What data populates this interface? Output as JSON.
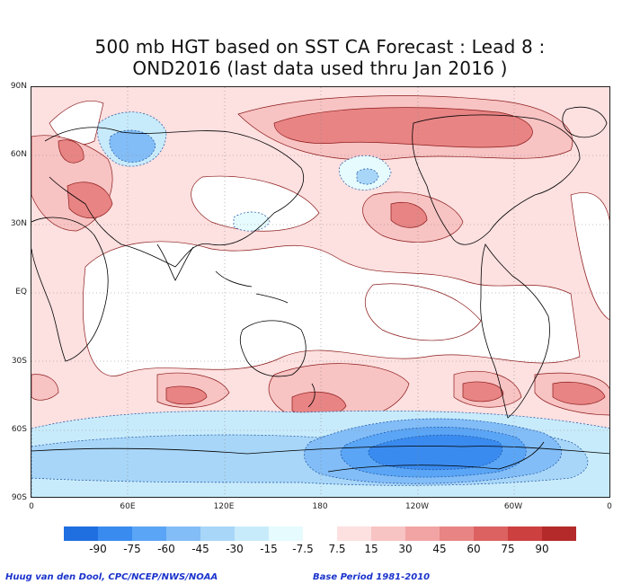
{
  "title": {
    "line1": "500 mb HGT based on SST CA Forecast : Lead 8 :",
    "line2": "OND2016 (last data used thru Jan 2016 )"
  },
  "map": {
    "lat_labels": [
      "90N",
      "60N",
      "30N",
      "EQ",
      "30S",
      "60S",
      "90S"
    ],
    "lon_labels": [
      "0",
      "60E",
      "120E",
      "180",
      "120W",
      "60W",
      "0"
    ]
  },
  "colorbar": {
    "levels": [
      "-90",
      "-75",
      "-60",
      "-45",
      "-30",
      "-15",
      "-7.5",
      "7.5",
      "15",
      "30",
      "45",
      "60",
      "75",
      "90"
    ],
    "colors": [
      "#1f6fe0",
      "#3a8bef",
      "#5aa5f5",
      "#82bdf7",
      "#a8d6f8",
      "#c8ebfb",
      "#e6fbfd",
      "#ffffff",
      "#fde0e0",
      "#f8c3c3",
      "#f2a4a4",
      "#e88484",
      "#dc6262",
      "#cd4040",
      "#b42a2a"
    ]
  },
  "footer": {
    "credit": "Huug van den Dool, CPC/NCEP/NWS/NOAA",
    "base_period": "Base Period 1981-2010"
  }
}
